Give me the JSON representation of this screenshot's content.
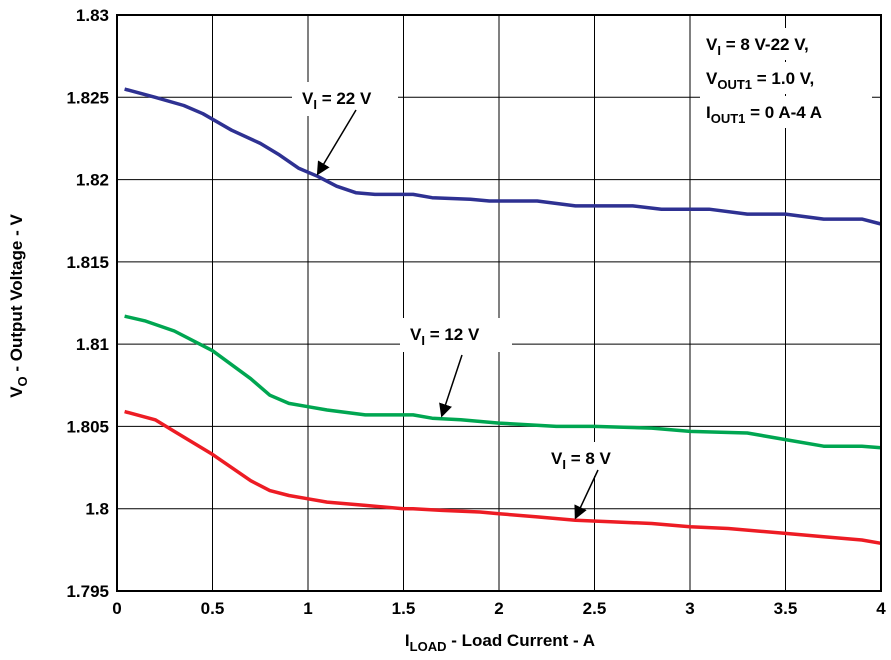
{
  "chart_data": {
    "type": "line",
    "xlabel": {
      "main": "I",
      "sub": "LOAD",
      "rest": " - Load Current - A"
    },
    "ylabel": {
      "main": "V",
      "sub": "O",
      "rest": " - Output Voltage - V"
    },
    "xlim": [
      0,
      4
    ],
    "ylim": [
      1.795,
      1.83
    ],
    "x_ticks": [
      "0",
      "0.5",
      "1",
      "1.5",
      "2",
      "2.5",
      "3",
      "3.5",
      "4"
    ],
    "y_ticks": [
      "1.795",
      "1.8",
      "1.805",
      "1.81",
      "1.815",
      "1.82",
      "1.825",
      "1.83"
    ],
    "grid": true,
    "colors": {
      "vi22": "#2e3192",
      "vi12": "#00a651",
      "vi8": "#ed1c24"
    },
    "series": [
      {
        "key": "vi22",
        "x": [
          0.04,
          0.2,
          0.35,
          0.45,
          0.6,
          0.75,
          0.85,
          0.95,
          1.05,
          1.15,
          1.25,
          1.35,
          1.5,
          1.55,
          1.65,
          1.85,
          1.95,
          2.2,
          2.4,
          2.7,
          2.85,
          3.1,
          3.3,
          3.5,
          3.7,
          3.9,
          4.0
        ],
        "y": [
          1.8255,
          1.825,
          1.8245,
          1.824,
          1.823,
          1.8222,
          1.8215,
          1.8207,
          1.8202,
          1.8196,
          1.8192,
          1.8191,
          1.8191,
          1.8191,
          1.8189,
          1.8188,
          1.8187,
          1.8187,
          1.8184,
          1.8184,
          1.8182,
          1.8182,
          1.8179,
          1.8179,
          1.8176,
          1.8176,
          1.8173
        ]
      },
      {
        "key": "vi12",
        "x": [
          0.04,
          0.15,
          0.3,
          0.5,
          0.7,
          0.8,
          0.9,
          1.0,
          1.1,
          1.3,
          1.5,
          1.55,
          1.65,
          1.8,
          2.0,
          2.3,
          2.5,
          2.8,
          3.0,
          3.3,
          3.5,
          3.7,
          3.9,
          4.0
        ],
        "y": [
          1.8117,
          1.8114,
          1.8108,
          1.8096,
          1.8079,
          1.8069,
          1.8064,
          1.8062,
          1.806,
          1.8057,
          1.8057,
          1.8057,
          1.8055,
          1.8054,
          1.8052,
          1.805,
          1.805,
          1.8049,
          1.8047,
          1.8046,
          1.8042,
          1.8038,
          1.8038,
          1.8037
        ]
      },
      {
        "key": "vi8",
        "x": [
          0.04,
          0.2,
          0.3,
          0.5,
          0.7,
          0.8,
          0.9,
          1.0,
          1.1,
          1.3,
          1.5,
          1.55,
          1.7,
          1.9,
          2.0,
          2.2,
          2.4,
          2.6,
          2.8,
          3.0,
          3.2,
          3.5,
          3.7,
          3.9,
          4.0
        ],
        "y": [
          1.8059,
          1.8054,
          1.8047,
          1.8033,
          1.8017,
          1.8011,
          1.8008,
          1.8006,
          1.8004,
          1.8002,
          1.8,
          1.8,
          1.7999,
          1.7998,
          1.7997,
          1.7995,
          1.7993,
          1.7992,
          1.7991,
          1.7989,
          1.7988,
          1.7985,
          1.7983,
          1.7981,
          1.7979
        ]
      }
    ],
    "annotations": [
      {
        "key": "vi22",
        "main": "V",
        "sub": "I",
        "rest": " = 22 V"
      },
      {
        "key": "vi12",
        "main": "V",
        "sub": "I",
        "rest": " = 12 V"
      },
      {
        "key": "vi8",
        "main": "V",
        "sub": "I",
        "rest": " = 8 V"
      }
    ],
    "conditions": [
      {
        "main": "V",
        "sub": "I",
        "rest": " = 8 V-22 V,"
      },
      {
        "main": "V",
        "sub": "OUT1",
        "rest": " = 1.0 V,"
      },
      {
        "main": "I",
        "sub": "OUT1",
        "rest": " = 0 A-4 A"
      }
    ]
  }
}
